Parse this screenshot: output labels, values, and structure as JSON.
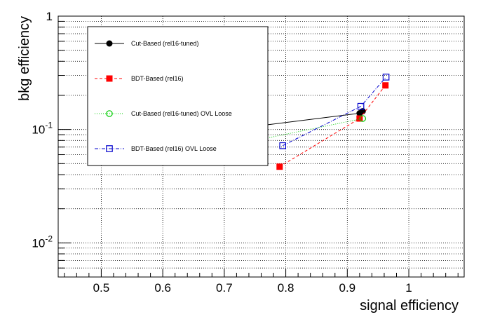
{
  "chart_data": {
    "type": "line",
    "xlabel": "signal efficiency",
    "ylabel": "bkg efficiency",
    "xlim": [
      0.43,
      1.09
    ],
    "ylim": [
      0.005,
      1
    ],
    "y_scale": "log",
    "grid": true,
    "x_ticks": [
      0.5,
      0.6,
      0.7,
      0.8,
      0.9,
      1.0
    ],
    "x_tick_labels": [
      "0.5",
      "0.6",
      "0.7",
      "0.8",
      "0.9",
      "1"
    ],
    "y_ticks": [
      {
        "value": 1,
        "mantissa": "1",
        "exponent": ""
      },
      {
        "value": 0.1,
        "mantissa": "10",
        "exponent": "-1"
      },
      {
        "value": 0.01,
        "mantissa": "10",
        "exponent": "-2"
      }
    ],
    "legend_position": "top-left",
    "series": [
      {
        "name": "Cut-Based (rel16-tuned)",
        "color": "#000000",
        "line_style": "solid",
        "marker": "filled-circle",
        "points": [
          [
            0.758,
            0.108
          ],
          [
            0.92,
            0.139
          ],
          [
            0.925,
            0.145
          ]
        ]
      },
      {
        "name": "BDT-Based (rel16)",
        "color": "#ff0000",
        "line_style": "dashed",
        "marker": "filled-square",
        "points": [
          [
            0.79,
            0.047
          ],
          [
            0.92,
            0.125
          ],
          [
            0.962,
            0.245
          ]
        ]
      },
      {
        "name": "Cut-Based (rel16-tuned) OVL Loose",
        "color": "#00cc00",
        "line_style": "dotted",
        "marker": "open-circle",
        "points": [
          [
            0.76,
            0.082
          ],
          [
            0.925,
            0.125
          ]
        ]
      },
      {
        "name": "BDT-Based (rel16) OVL Loose",
        "color": "#0000cc",
        "line_style": "dashdot",
        "marker": "open-square",
        "points": [
          [
            0.795,
            0.072
          ],
          [
            0.922,
            0.16
          ],
          [
            0.963,
            0.29
          ]
        ]
      }
    ]
  }
}
